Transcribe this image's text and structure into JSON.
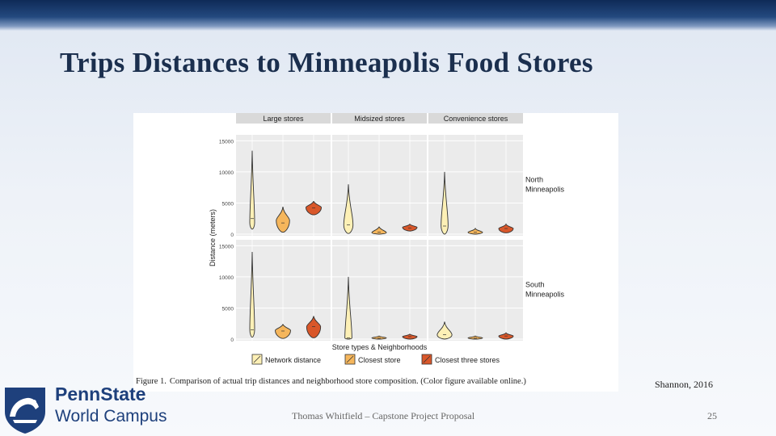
{
  "slide": {
    "title": "Trips Distances to Minneapolis Food Stores",
    "caption_label": "Figure 1.",
    "caption_text": "Comparison of actual trip distances and neighborhood store composition. (Color figure available online.)",
    "citation": "Shannon, 2016",
    "footer": "Thomas Whitfield – Capstone Project Proposal",
    "page_number": "25"
  },
  "logo": {
    "line1": "PennState",
    "line2": "World Campus"
  },
  "colors": {
    "network": "#fdf0b6",
    "closest_store": "#f5b65c",
    "closest_three": "#d9572a",
    "panel_bg": "#ebebeb",
    "strip_bg": "#d9d9d9",
    "grid": "#ffffff",
    "outline": "#333333"
  },
  "chart_data": {
    "type": "violin",
    "title": "",
    "ylabel": "Distance (meters)",
    "xlabel": "Store types & Neighborhoods",
    "ylim": [
      0,
      15000
    ],
    "yticks": [
      0,
      5000,
      10000,
      15000
    ],
    "columns": [
      "Large stores",
      "Midsized stores",
      "Convenience stores"
    ],
    "rows": [
      "North Minneapolis",
      "South Minneapolis"
    ],
    "legend": [
      {
        "key": "network",
        "label": "Network distance"
      },
      {
        "key": "closest_store",
        "label": "Closest store"
      },
      {
        "key": "closest_three",
        "label": "Closest three stores"
      }
    ],
    "panels": [
      {
        "row": 0,
        "col": 0,
        "violins": [
          {
            "series": "network",
            "min": 800,
            "max": 13400,
            "median": 2500,
            "bulge": 1800
          },
          {
            "series": "closest_store",
            "min": 300,
            "max": 4400,
            "median": 1800,
            "bulge": 2200
          },
          {
            "series": "closest_three",
            "min": 3100,
            "max": 5300,
            "median": 4200,
            "bulge": 4300
          }
        ]
      },
      {
        "row": 0,
        "col": 1,
        "violins": [
          {
            "series": "network",
            "min": 100,
            "max": 8000,
            "median": 1500,
            "bulge": 1500
          },
          {
            "series": "closest_store",
            "min": 0,
            "max": 1200,
            "median": 300,
            "bulge": 250
          },
          {
            "series": "closest_three",
            "min": 500,
            "max": 1600,
            "median": 1000,
            "bulge": 1100
          }
        ]
      },
      {
        "row": 0,
        "col": 2,
        "violins": [
          {
            "series": "network",
            "min": 0,
            "max": 10000,
            "median": 1300,
            "bulge": 1400
          },
          {
            "series": "closest_store",
            "min": 0,
            "max": 900,
            "median": 300,
            "bulge": 300
          },
          {
            "series": "closest_three",
            "min": 200,
            "max": 1600,
            "median": 900,
            "bulge": 900
          }
        ]
      },
      {
        "row": 1,
        "col": 0,
        "violins": [
          {
            "series": "network",
            "min": 300,
            "max": 14000,
            "median": 1500,
            "bulge": 1500
          },
          {
            "series": "closest_store",
            "min": 100,
            "max": 2400,
            "median": 1300,
            "bulge": 1400
          },
          {
            "series": "closest_three",
            "min": 200,
            "max": 3700,
            "median": 2000,
            "bulge": 2000
          }
        ]
      },
      {
        "row": 1,
        "col": 1,
        "violins": [
          {
            "series": "network",
            "min": 0,
            "max": 10000,
            "median": 200,
            "bulge": 200
          },
          {
            "series": "closest_store",
            "min": 0,
            "max": 500,
            "median": 150,
            "bulge": 200
          },
          {
            "series": "closest_three",
            "min": 0,
            "max": 800,
            "median": 400,
            "bulge": 400
          }
        ]
      },
      {
        "row": 1,
        "col": 2,
        "violins": [
          {
            "series": "network",
            "min": 0,
            "max": 2800,
            "median": 700,
            "bulge": 700
          },
          {
            "series": "closest_store",
            "min": 0,
            "max": 500,
            "median": 150,
            "bulge": 200
          },
          {
            "series": "closest_three",
            "min": 0,
            "max": 1000,
            "median": 500,
            "bulge": 500
          }
        ]
      }
    ]
  }
}
